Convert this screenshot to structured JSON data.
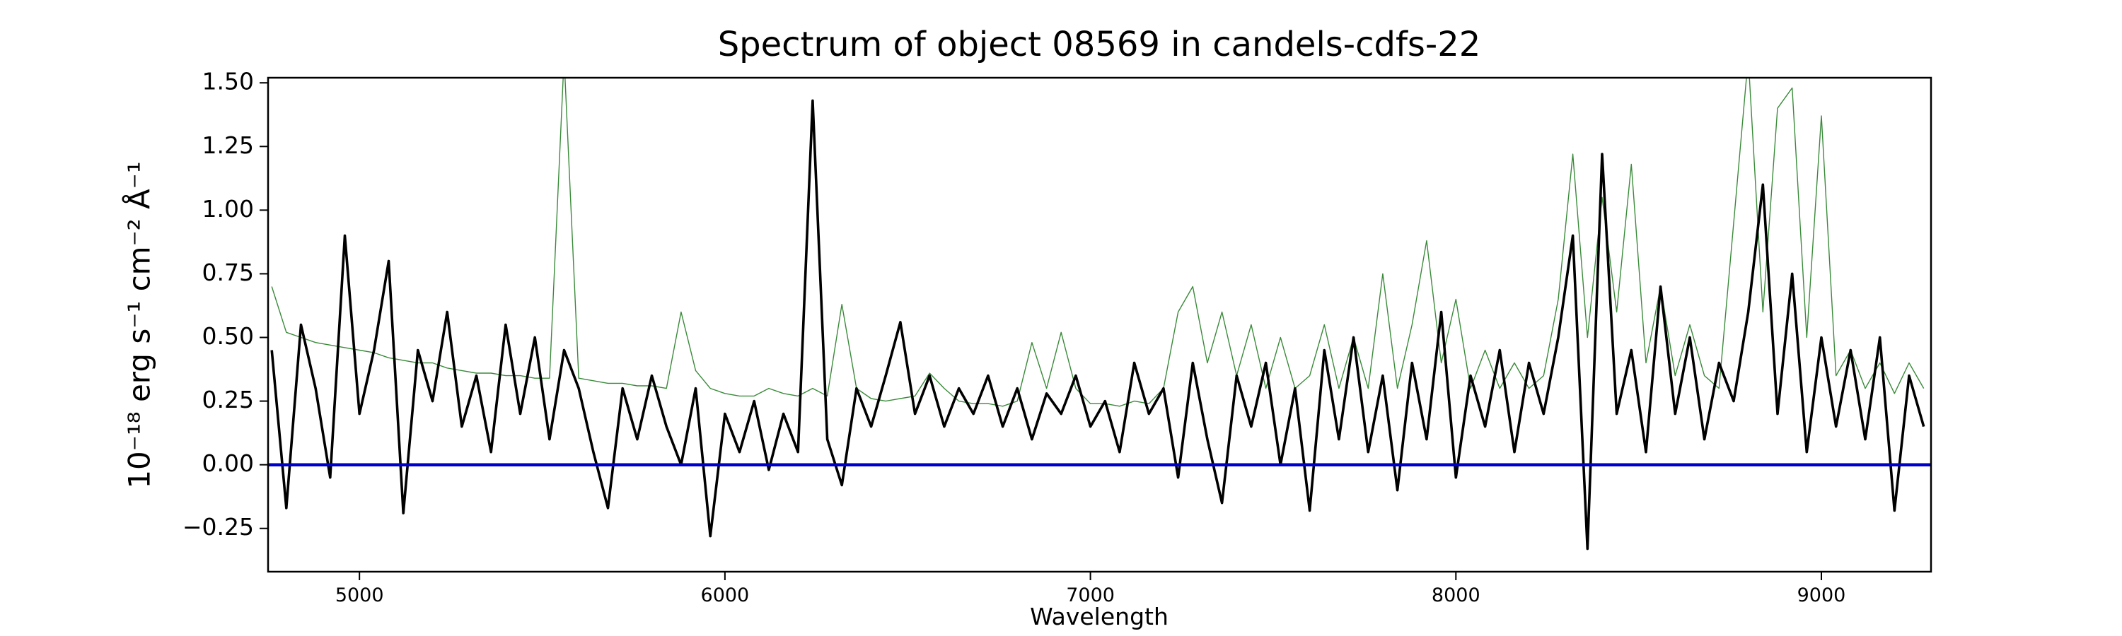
{
  "chart_data": {
    "type": "line",
    "title": "Spectrum of object 08569 in candels-cdfs-22",
    "xlabel": "Wavelength",
    "ylabel": "10⁻¹⁸ erg s⁻¹ cm⁻² Å⁻¹",
    "xlim": [
      4750,
      9300
    ],
    "ylim": [
      -0.42,
      1.52
    ],
    "xticks": [
      5000,
      6000,
      7000,
      8000,
      9000
    ],
    "yticks": [
      {
        "value": -0.25,
        "label": "−0.25"
      },
      {
        "value": 0,
        "label": "0.00"
      },
      0.25,
      {
        "value": 0.5,
        "label": "0.50"
      },
      0.75,
      {
        "value": 1,
        "label": "1.00"
      },
      1.25,
      {
        "value": 1.5,
        "label": "1.50"
      }
    ],
    "x": [
      4760,
      4800,
      4840,
      4880,
      4920,
      4960,
      5000,
      5040,
      5080,
      5120,
      5160,
      5200,
      5240,
      5280,
      5320,
      5360,
      5400,
      5440,
      5480,
      5520,
      5560,
      5600,
      5640,
      5680,
      5720,
      5760,
      5800,
      5840,
      5880,
      5920,
      5960,
      6000,
      6040,
      6080,
      6120,
      6160,
      6200,
      6240,
      6280,
      6320,
      6360,
      6400,
      6440,
      6480,
      6520,
      6560,
      6600,
      6640,
      6680,
      6720,
      6760,
      6800,
      6840,
      6880,
      6920,
      6960,
      7000,
      7040,
      7080,
      7120,
      7160,
      7200,
      7240,
      7280,
      7320,
      7360,
      7400,
      7440,
      7480,
      7520,
      7560,
      7600,
      7640,
      7680,
      7720,
      7760,
      7800,
      7840,
      7880,
      7920,
      7960,
      8000,
      8040,
      8080,
      8120,
      8160,
      8200,
      8240,
      8280,
      8320,
      8360,
      8400,
      8440,
      8480,
      8520,
      8560,
      8600,
      8640,
      8680,
      8720,
      8760,
      8800,
      8840,
      8880,
      8920,
      8960,
      9000,
      9040,
      9080,
      9120,
      9160,
      9200,
      9240,
      9280
    ],
    "series": [
      {
        "color": "#3a8a3a",
        "width": 1.4,
        "values": [
          0.7,
          0.52,
          0.5,
          0.48,
          0.47,
          0.46,
          0.45,
          0.44,
          0.42,
          0.41,
          0.4,
          0.4,
          0.38,
          0.37,
          0.36,
          0.36,
          0.35,
          0.35,
          0.34,
          0.34,
          1.6,
          0.34,
          0.33,
          0.32,
          0.32,
          0.31,
          0.31,
          0.3,
          0.6,
          0.37,
          0.3,
          0.28,
          0.27,
          0.27,
          0.3,
          0.28,
          0.27,
          0.3,
          0.27,
          0.63,
          0.3,
          0.26,
          0.25,
          0.26,
          0.27,
          0.36,
          0.3,
          0.25,
          0.24,
          0.24,
          0.23,
          0.25,
          0.48,
          0.3,
          0.52,
          0.3,
          0.24,
          0.24,
          0.23,
          0.25,
          0.24,
          0.3,
          0.6,
          0.7,
          0.4,
          0.6,
          0.35,
          0.55,
          0.3,
          0.5,
          0.3,
          0.35,
          0.55,
          0.3,
          0.5,
          0.3,
          0.75,
          0.3,
          0.55,
          0.88,
          0.4,
          0.65,
          0.3,
          0.45,
          0.3,
          0.4,
          0.3,
          0.35,
          0.65,
          1.22,
          0.5,
          1.05,
          0.6,
          1.18,
          0.4,
          0.7,
          0.35,
          0.55,
          0.35,
          0.3,
          0.95,
          1.6,
          0.6,
          1.4,
          1.48,
          0.5,
          1.37,
          0.35,
          0.45,
          0.3,
          0.4,
          0.28,
          0.4,
          0.3
        ]
      },
      {
        "color": "#000000",
        "width": 3.6,
        "values": [
          0.45,
          -0.17,
          0.55,
          0.3,
          -0.05,
          0.9,
          0.2,
          0.45,
          0.8,
          -0.19,
          0.45,
          0.25,
          0.6,
          0.15,
          0.35,
          0.05,
          0.55,
          0.2,
          0.5,
          0.1,
          0.45,
          0.3,
          0.05,
          -0.17,
          0.3,
          0.1,
          0.35,
          0.15,
          0,
          0.3,
          -0.28,
          0.2,
          0.05,
          0.25,
          -0.02,
          0.2,
          0.05,
          1.43,
          0.1,
          -0.08,
          0.3,
          0.15,
          0.35,
          0.56,
          0.2,
          0.35,
          0.15,
          0.3,
          0.2,
          0.35,
          0.15,
          0.3,
          0.1,
          0.28,
          0.2,
          0.35,
          0.15,
          0.25,
          0.05,
          0.4,
          0.2,
          0.3,
          -0.05,
          0.4,
          0.1,
          -0.15,
          0.35,
          0.15,
          0.4,
          0,
          0.3,
          -0.18,
          0.45,
          0.1,
          0.5,
          0.05,
          0.35,
          -0.1,
          0.4,
          0.1,
          0.6,
          -0.05,
          0.35,
          0.15,
          0.45,
          0.05,
          0.4,
          0.2,
          0.5,
          0.9,
          -0.33,
          1.22,
          0.2,
          0.45,
          0.05,
          0.7,
          0.2,
          0.5,
          0.1,
          0.4,
          0.25,
          0.6,
          1.1,
          0.2,
          0.75,
          0.05,
          0.5,
          0.15,
          0.45,
          0.1,
          0.5,
          -0.18,
          0.35,
          0.15
        ]
      },
      {
        "color": "#0000cc",
        "width": 4.5,
        "x": [
          4750,
          9300
        ],
        "values": [
          0,
          0
        ]
      }
    ]
  }
}
